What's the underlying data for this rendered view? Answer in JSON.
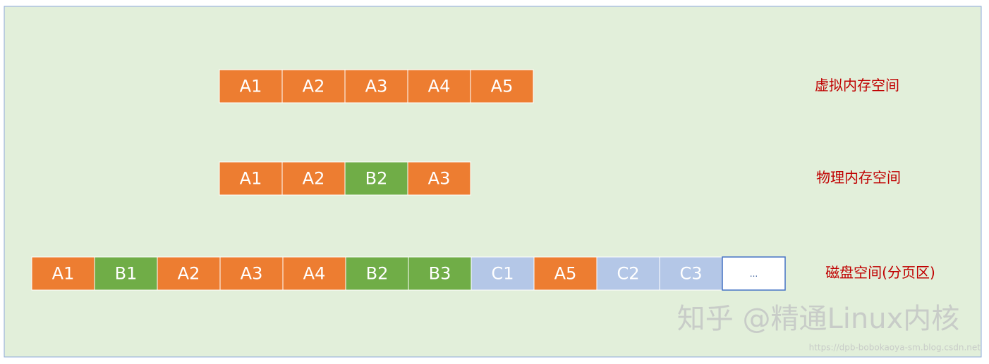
{
  "rows": [
    {
      "label": "虚拟内存空间",
      "blocks": [
        {
          "text": "A1",
          "color": "#ed7d31"
        },
        {
          "text": "A2",
          "color": "#ed7d31"
        },
        {
          "text": "A3",
          "color": "#ed7d31"
        },
        {
          "text": "A4",
          "color": "#ed7d31"
        },
        {
          "text": "A5",
          "color": "#ed7d31"
        }
      ]
    },
    {
      "label": "物理内存空间",
      "blocks": [
        {
          "text": "A1",
          "color": "#ed7d31"
        },
        {
          "text": "A2",
          "color": "#ed7d31"
        },
        {
          "text": "B2",
          "color": "#70ad47"
        },
        {
          "text": "A3",
          "color": "#ed7d31"
        }
      ]
    },
    {
      "label": "磁盘空间(分页区)",
      "blocks": [
        {
          "text": "A1",
          "color": "#ed7d31"
        },
        {
          "text": "B1",
          "color": "#70ad47"
        },
        {
          "text": "A2",
          "color": "#ed7d31"
        },
        {
          "text": "A3",
          "color": "#ed7d31"
        },
        {
          "text": "A4",
          "color": "#ed7d31"
        },
        {
          "text": "B2",
          "color": "#70ad47"
        },
        {
          "text": "B3",
          "color": "#70ad47"
        },
        {
          "text": "C1",
          "color": "#b4c7e7"
        },
        {
          "text": "A5",
          "color": "#ed7d31"
        },
        {
          "text": "C2",
          "color": "#b4c7e7"
        },
        {
          "text": "C3",
          "color": "#b4c7e7"
        },
        {
          "text": "...",
          "color": "#ffffff"
        }
      ]
    }
  ],
  "watermark": "知乎 @精通Linux内核",
  "url": "https://dpb-bobokaoya-sm.blog.csdn.net"
}
